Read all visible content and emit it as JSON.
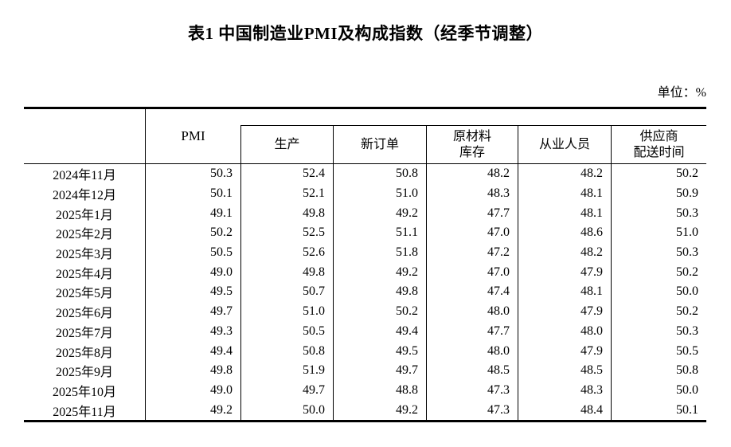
{
  "title": "表1 中国制造业PMI及构成指数（经季节调整）",
  "unit_label": "单位：%",
  "table": {
    "header": {
      "month_column": "",
      "pmi": "PMI",
      "sub_columns": [
        {
          "label": "生产",
          "lines": [
            "生产"
          ]
        },
        {
          "label": "新订单",
          "lines": [
            "新订单"
          ]
        },
        {
          "label": "原材料库存",
          "lines": [
            "原材料",
            "库存"
          ]
        },
        {
          "label": "从业人员",
          "lines": [
            "从业人员"
          ]
        },
        {
          "label": "供应商配送时间",
          "lines": [
            "供应商",
            "配送时间"
          ]
        }
      ]
    },
    "rows": [
      {
        "month": "2024年11月",
        "values": [
          "50.3",
          "52.4",
          "50.8",
          "48.2",
          "48.2",
          "50.2"
        ]
      },
      {
        "month": "2024年12月",
        "values": [
          "50.1",
          "52.1",
          "51.0",
          "48.3",
          "48.1",
          "50.9"
        ]
      },
      {
        "month": "2025年1月",
        "values": [
          "49.1",
          "49.8",
          "49.2",
          "47.7",
          "48.1",
          "50.3"
        ]
      },
      {
        "month": "2025年2月",
        "values": [
          "50.2",
          "52.5",
          "51.1",
          "47.0",
          "48.6",
          "51.0"
        ]
      },
      {
        "month": "2025年3月",
        "values": [
          "50.5",
          "52.6",
          "51.8",
          "47.2",
          "48.2",
          "50.3"
        ]
      },
      {
        "month": "2025年4月",
        "values": [
          "49.0",
          "49.8",
          "49.2",
          "47.0",
          "47.9",
          "50.2"
        ]
      },
      {
        "month": "2025年5月",
        "values": [
          "49.5",
          "50.7",
          "49.8",
          "47.4",
          "48.1",
          "50.0"
        ]
      },
      {
        "month": "2025年6月",
        "values": [
          "49.7",
          "51.0",
          "50.2",
          "48.0",
          "47.9",
          "50.2"
        ]
      },
      {
        "month": "2025年7月",
        "values": [
          "49.3",
          "50.5",
          "49.4",
          "47.7",
          "48.0",
          "50.3"
        ]
      },
      {
        "month": "2025年8月",
        "values": [
          "49.4",
          "50.8",
          "49.5",
          "48.0",
          "47.9",
          "50.5"
        ]
      },
      {
        "month": "2025年9月",
        "values": [
          "49.8",
          "51.9",
          "49.7",
          "48.5",
          "48.5",
          "50.8"
        ]
      },
      {
        "month": "2025年10月",
        "values": [
          "49.0",
          "49.7",
          "48.8",
          "47.3",
          "48.3",
          "50.0"
        ]
      },
      {
        "month": "2025年11月",
        "values": [
          "49.2",
          "50.0",
          "49.2",
          "47.3",
          "48.4",
          "50.1"
        ]
      }
    ],
    "colors": {
      "text": "#000000",
      "border": "#000000",
      "background": "#ffffff"
    }
  }
}
